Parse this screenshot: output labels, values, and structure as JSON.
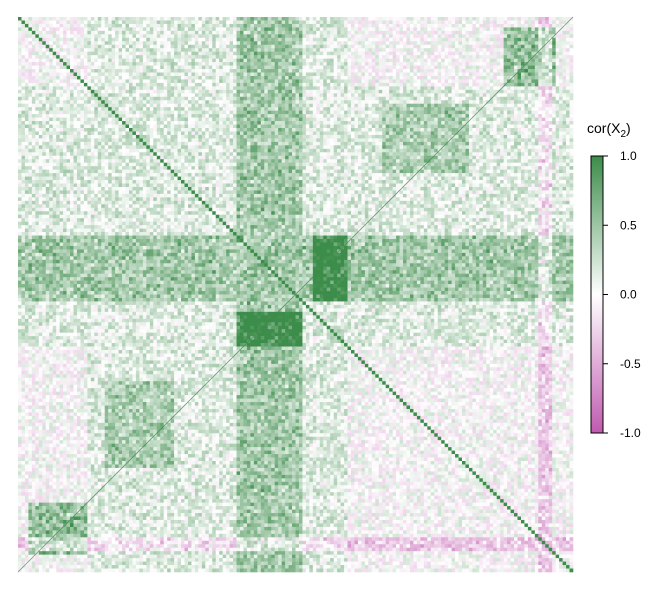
{
  "chart_data": {
    "type": "heatmap",
    "title": "",
    "xlabel": "",
    "ylabel": "",
    "n_variables": 160,
    "diagonal_value": 1.0,
    "value_range": [
      -1.0,
      1.0
    ],
    "legend": {
      "title": "cor(X",
      "title_subscript": "2",
      "title_suffix": ")",
      "placement": "right",
      "ticks": [
        1.0,
        0.5,
        0.0,
        -0.5,
        -1.0
      ],
      "tick_labels": [
        "1.0",
        "0.5",
        "0.0",
        "-0.5",
        "-1.0"
      ]
    },
    "colors": {
      "positive": "#3c8c4a",
      "zero": "#ffffff",
      "negative": "#c05ab0"
    },
    "blocks": [
      {
        "rows": [
          63,
          82
        ],
        "cols": [
          0,
          160
        ],
        "mean_correlation": 0.35
      },
      {
        "rows": [
          63,
          82
        ],
        "cols": [
          85,
          95
        ],
        "mean_correlation": 0.7
      },
      {
        "rows": [
          0,
          160
        ],
        "cols": [
          20,
          95
        ],
        "mean_correlation": 0.18
      },
      {
        "rows": [
          140,
          155
        ],
        "cols": [
          3,
          20
        ],
        "mean_correlation": 0.6
      },
      {
        "rows": [
          25,
          45
        ],
        "cols": [
          105,
          130
        ],
        "mean_correlation": 0.3
      },
      {
        "rows": [
          0,
          160
        ],
        "cols": [
          150,
          154
        ],
        "mean_correlation": -0.35
      }
    ]
  }
}
